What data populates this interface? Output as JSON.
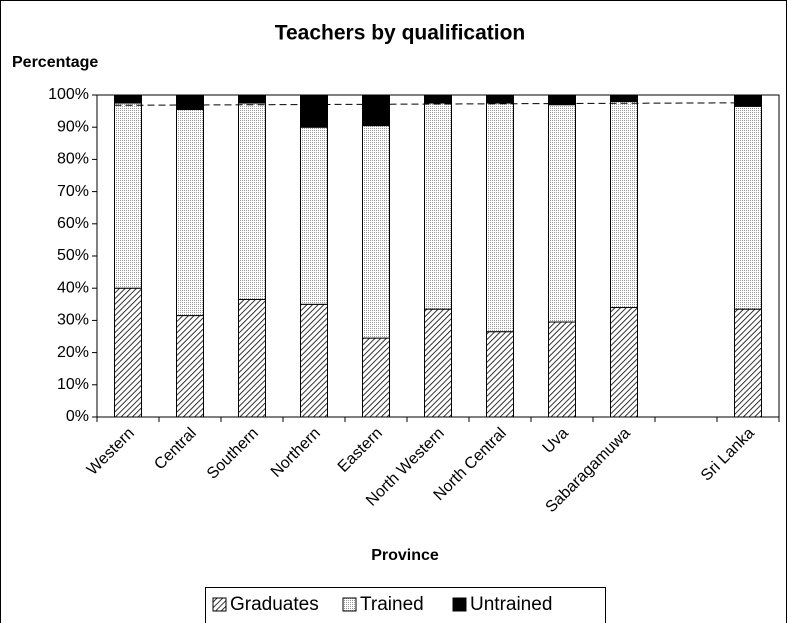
{
  "chart_data": {
    "type": "stacked_bar",
    "title": "Teachers by qualification",
    "y_label": "Percentage",
    "x_label": "Province",
    "categories": [
      "Western",
      "Central",
      "Southern",
      "Northern",
      "Eastern",
      "North Western",
      "North Central",
      "Uva",
      "Sabaragamuwa",
      null,
      "Sri Lanka"
    ],
    "series": [
      {
        "name": "Graduates",
        "color": "#000000",
        "pattern": "hatch",
        "values": [
          40,
          31.5,
          36.5,
          35,
          24.5,
          33.5,
          26.5,
          29.5,
          34,
          null,
          33.5
        ]
      },
      {
        "name": "Trained",
        "color": "#bbbbbb",
        "pattern": "dots",
        "values": [
          57.5,
          64,
          61,
          55,
          66,
          64,
          71,
          67.5,
          64,
          null,
          63
        ]
      },
      {
        "name": "Untrained",
        "color": "#000000",
        "pattern": "solid",
        "values": [
          2.5,
          4.5,
          2.5,
          10,
          9.5,
          2.5,
          2.5,
          3,
          2,
          null,
          3.5
        ]
      }
    ],
    "reference_line": {
      "start": 96.8,
      "end": 97.6,
      "style": "dashed"
    },
    "ylim": [
      0,
      100
    ],
    "yticks": [
      {
        "value": 0,
        "label": "0%"
      },
      {
        "value": 10,
        "label": "10%"
      },
      {
        "value": 20,
        "label": "20%"
      },
      {
        "value": 30,
        "label": "30%"
      },
      {
        "value": 40,
        "label": "40%"
      },
      {
        "value": 50,
        "label": "50%"
      },
      {
        "value": 60,
        "label": "60%"
      },
      {
        "value": 70,
        "label": "70%"
      },
      {
        "value": 80,
        "label": "80%"
      },
      {
        "value": 90,
        "label": "90%"
      },
      {
        "value": 100,
        "label": "100%"
      }
    ],
    "legend": "bottom"
  }
}
